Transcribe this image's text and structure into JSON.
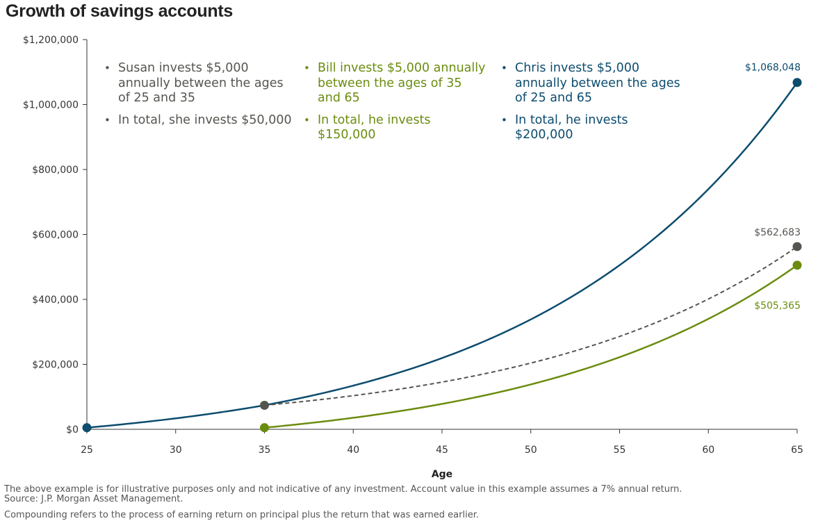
{
  "chart_data": {
    "type": "line",
    "title": "Growth of savings accounts",
    "xlabel": "Age",
    "ylabel": "",
    "x_ticks": [
      25,
      30,
      35,
      40,
      45,
      50,
      55,
      60,
      65
    ],
    "y_ticks": [
      0,
      200000,
      400000,
      600000,
      800000,
      1000000,
      1200000
    ],
    "y_tick_labels": [
      "$0",
      "$200,000",
      "$400,000",
      "$600,000",
      "$800,000",
      "$1,000,000",
      "$1,200,000"
    ],
    "xlim": [
      25,
      65
    ],
    "ylim": [
      0,
      1200000
    ],
    "grid": false,
    "annual_return": 0.07,
    "series": [
      {
        "key": "chris",
        "color": "#0c4c6e",
        "style": "solid",
        "start_age": 25,
        "end_age": 65,
        "points": [
          [
            25,
            5000
          ],
          [
            35,
            73918
          ],
          [
            65,
            1068048
          ]
        ],
        "end_label": "$1,068,048"
      },
      {
        "key": "susan",
        "color": "#555550",
        "style": "dashed",
        "start_age": 35,
        "end_age": 65,
        "points": [
          [
            35,
            73918
          ],
          [
            65,
            562683
          ]
        ],
        "end_label": "$562,683"
      },
      {
        "key": "bill",
        "color": "#6b8c0f",
        "style": "solid",
        "start_age": 35,
        "end_age": 65,
        "points": [
          [
            35,
            5000
          ],
          [
            65,
            505365
          ]
        ],
        "end_label": "$505,365"
      }
    ],
    "annotations": {
      "susan": [
        "Susan invests $5,000 annually between the ages of 25 and 35",
        "In total, she invests $50,000"
      ],
      "bill": [
        "Bill invests $5,000 annually between the ages of 35 and 65",
        "In total, he invests $150,000"
      ],
      "chris": [
        "Chris invests $5,000 annually between the ages of 25 and 65",
        "In total, he invests $200,000"
      ]
    }
  },
  "notes": {
    "line1": "The above example is for illustrative purposes only and not indicative of any investment. Account value in this example assumes a 7% annual return.",
    "line2": "Source: J.P. Morgan Asset Management.",
    "line3": "Compounding refers to the process of earning return on principal plus the return that was earned earlier."
  },
  "colors": {
    "axis": "#333333",
    "chris": "#0c4c6e",
    "susan": "#555550",
    "bill": "#6b8c0f"
  }
}
